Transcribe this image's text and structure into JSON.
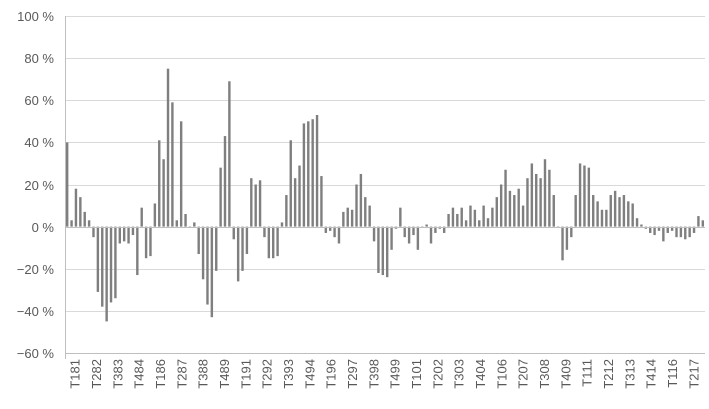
{
  "chart_data": {
    "type": "bar",
    "title": "",
    "xlabel": "",
    "ylabel": "",
    "ylim": [
      -60,
      100
    ],
    "y_ticks": [
      -60,
      -40,
      -20,
      0,
      20,
      40,
      60,
      80,
      100
    ],
    "y_tick_labels": [
      "−60 %",
      "−40 %",
      "−20 %",
      "0 %",
      "20 %",
      "40 %",
      "60 %",
      "80 %",
      "100 %"
    ],
    "grid": true,
    "legend": "none",
    "bar_color": "#7f7f7f",
    "x_tick_labels": [
      "T181",
      "T282",
      "T383",
      "T484",
      "T186",
      "T287",
      "T388",
      "T489",
      "T191",
      "T292",
      "T393",
      "T494",
      "T196",
      "T297",
      "T398",
      "T499",
      "T101",
      "T202",
      "T303",
      "T404",
      "T106",
      "T207",
      "T308",
      "T409",
      "T111",
      "T212",
      "T313",
      "T414",
      "T116",
      "T217"
    ],
    "values": [
      40,
      3,
      18,
      14,
      7,
      3,
      -5,
      -31,
      -38,
      -45,
      -36,
      -34,
      -8,
      -7,
      -8,
      -4,
      -23,
      9,
      -15,
      -14,
      11,
      41,
      32,
      75,
      59,
      3,
      50,
      6,
      0,
      2,
      -13,
      -25,
      -37,
      -43,
      -21,
      28,
      43,
      69,
      -6,
      -26,
      -21,
      -13,
      23,
      20,
      22,
      -5,
      -15,
      -15,
      -14,
      2,
      15,
      41,
      23,
      29,
      49,
      50,
      51,
      53,
      24,
      -3,
      -2,
      -5,
      -8,
      7,
      9,
      8,
      20,
      25,
      14,
      10,
      -7,
      -22,
      -23,
      -24,
      -11,
      -1,
      9,
      -5,
      -8,
      -4,
      -11,
      0,
      1,
      -8,
      -3,
      -1,
      -3,
      6,
      9,
      6,
      9,
      3,
      10,
      8,
      3,
      10,
      4,
      9,
      14,
      20,
      27,
      17,
      15,
      18,
      10,
      23,
      30,
      25,
      23,
      32,
      27,
      15,
      0,
      -16,
      -11,
      -5,
      15,
      30,
      29,
      28,
      15,
      12,
      8,
      8,
      15,
      17,
      14,
      15,
      12,
      11,
      4,
      1,
      -1,
      -3,
      -4,
      -2,
      -7,
      -3,
      -2,
      -5,
      -5,
      -6,
      -5,
      -3,
      5,
      3
    ]
  }
}
